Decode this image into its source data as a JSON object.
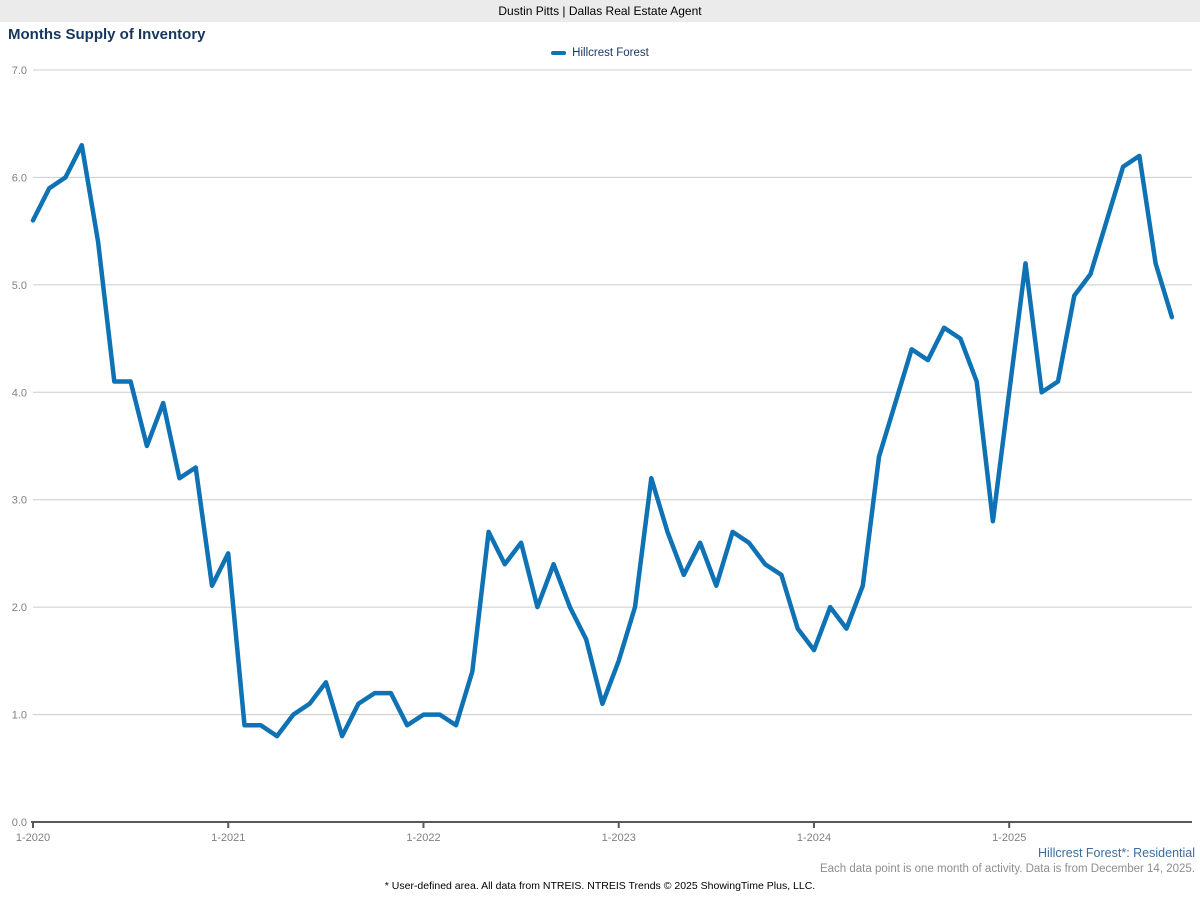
{
  "header": {
    "title": "Dustin Pitts | Dallas Real Estate Agent"
  },
  "chart_title": "Months Supply of Inventory",
  "legend": {
    "items": [
      {
        "label": "Hillcrest Forest",
        "color": "#0e72b4"
      }
    ]
  },
  "footer": {
    "region_label": "Hillcrest Forest*: Residential",
    "data_note": "Each data point is one month of activity. Data is from December 14, 2025.",
    "disclaimer": "* User-defined area. All data from NTREIS. NTREIS Trends © 2025 ShowingTime Plus, LLC."
  },
  "colors": {
    "line": "#0e72b4",
    "title_text": "#17365d",
    "axis_text": "#808080",
    "grid": "#cccccc",
    "axis_line": "#595959",
    "region_label": "#3a6e9e",
    "note_text": "#8e8e8e",
    "header_bg": "#ebebeb"
  },
  "chart_data": {
    "type": "line",
    "title": "Months Supply of Inventory",
    "x_start": "1-2020",
    "x_end": "11-2025",
    "x_tick_labels": [
      "1-2020",
      "1-2021",
      "1-2022",
      "1-2023",
      "1-2024",
      "1-2025"
    ],
    "x_tick_month_indices": [
      0,
      12,
      24,
      36,
      48,
      60
    ],
    "y_ticks": [
      0,
      1,
      2,
      3,
      4,
      5,
      6,
      7
    ],
    "y_tick_labels": [
      "0.0",
      "1.0",
      "2.0",
      "3.0",
      "4.0",
      "5.0",
      "6.0",
      "7.0"
    ],
    "ylim": [
      0.0,
      7.0
    ],
    "grid": "horizontal",
    "legend_position": "top-center",
    "series": [
      {
        "name": "Hillcrest Forest",
        "color": "#0e72b4",
        "months": [
          "1-2020",
          "2-2020",
          "3-2020",
          "4-2020",
          "5-2020",
          "6-2020",
          "7-2020",
          "8-2020",
          "9-2020",
          "10-2020",
          "11-2020",
          "12-2020",
          "1-2021",
          "2-2021",
          "3-2021",
          "4-2021",
          "5-2021",
          "6-2021",
          "7-2021",
          "8-2021",
          "9-2021",
          "10-2021",
          "11-2021",
          "12-2021",
          "1-2022",
          "2-2022",
          "3-2022",
          "4-2022",
          "5-2022",
          "6-2022",
          "7-2022",
          "8-2022",
          "9-2022",
          "10-2022",
          "11-2022",
          "12-2022",
          "1-2023",
          "2-2023",
          "3-2023",
          "4-2023",
          "5-2023",
          "6-2023",
          "7-2023",
          "8-2023",
          "9-2023",
          "10-2023",
          "11-2023",
          "12-2023",
          "1-2024",
          "2-2024",
          "3-2024",
          "4-2024",
          "5-2024",
          "6-2024",
          "7-2024",
          "8-2024",
          "9-2024",
          "10-2024",
          "11-2024",
          "12-2024",
          "1-2025",
          "2-2025",
          "3-2025",
          "4-2025",
          "5-2025",
          "6-2025",
          "7-2025",
          "8-2025",
          "9-2025",
          "10-2025",
          "11-2025"
        ],
        "values": [
          5.6,
          5.9,
          6.0,
          6.3,
          5.4,
          4.1,
          4.1,
          3.5,
          3.9,
          3.2,
          3.3,
          2.2,
          2.5,
          0.9,
          0.9,
          0.8,
          1.0,
          1.1,
          1.3,
          0.8,
          1.1,
          1.2,
          1.2,
          0.9,
          1.0,
          1.0,
          0.9,
          1.4,
          2.7,
          2.4,
          2.6,
          2.0,
          2.4,
          2.0,
          1.7,
          1.1,
          1.5,
          2.0,
          3.2,
          2.7,
          2.3,
          2.6,
          2.2,
          2.7,
          2.6,
          2.4,
          2.3,
          1.8,
          1.6,
          2.0,
          1.8,
          2.2,
          3.4,
          3.9,
          4.4,
          4.3,
          4.6,
          4.5,
          4.1,
          2.8,
          4.0,
          5.2,
          4.0,
          4.1,
          4.9,
          5.1,
          5.6,
          6.1,
          6.2,
          5.2,
          4.7
        ]
      }
    ]
  }
}
